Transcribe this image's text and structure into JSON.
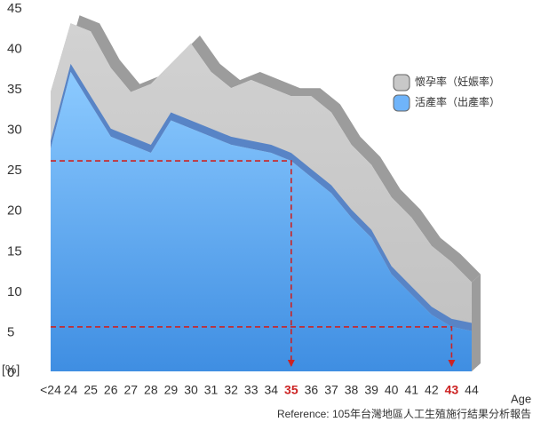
{
  "chart_data": {
    "type": "area",
    "categories": [
      "<24",
      "24",
      "25",
      "26",
      "27",
      "28",
      "29",
      "30",
      "31",
      "32",
      "33",
      "34",
      "35",
      "36",
      "37",
      "38",
      "39",
      "40",
      "41",
      "42",
      "43",
      "44"
    ],
    "series": [
      {
        "name": "懷孕率（妊娠率）",
        "color": "#c8c8c8",
        "values": [
          34.5,
          43,
          42,
          37.5,
          34.5,
          35.5,
          38,
          40.5,
          37,
          35,
          36,
          35,
          34,
          34,
          32,
          28,
          25.5,
          21.5,
          19,
          15.5,
          13.5,
          11
        ]
      },
      {
        "name": "活產率（出產率）",
        "color": "#6fb4fa",
        "values": [
          27.5,
          37,
          33,
          29,
          28,
          27,
          31,
          30,
          29,
          28,
          27.5,
          27,
          26,
          24,
          22,
          19,
          16.5,
          12,
          9.5,
          7,
          5.5,
          5
        ]
      }
    ],
    "ylim": [
      0,
      45
    ],
    "yticks": [
      0,
      5,
      10,
      15,
      20,
      25,
      30,
      35,
      40,
      45
    ],
    "y_label": "[%]",
    "x_label": "Age",
    "highlight_indices": [
      12,
      20
    ],
    "highlight_color": "#cc2222",
    "source": "Reference: 105年台灣地區人工生殖施行結果分析報告",
    "legend": "upper right",
    "grid": false
  }
}
